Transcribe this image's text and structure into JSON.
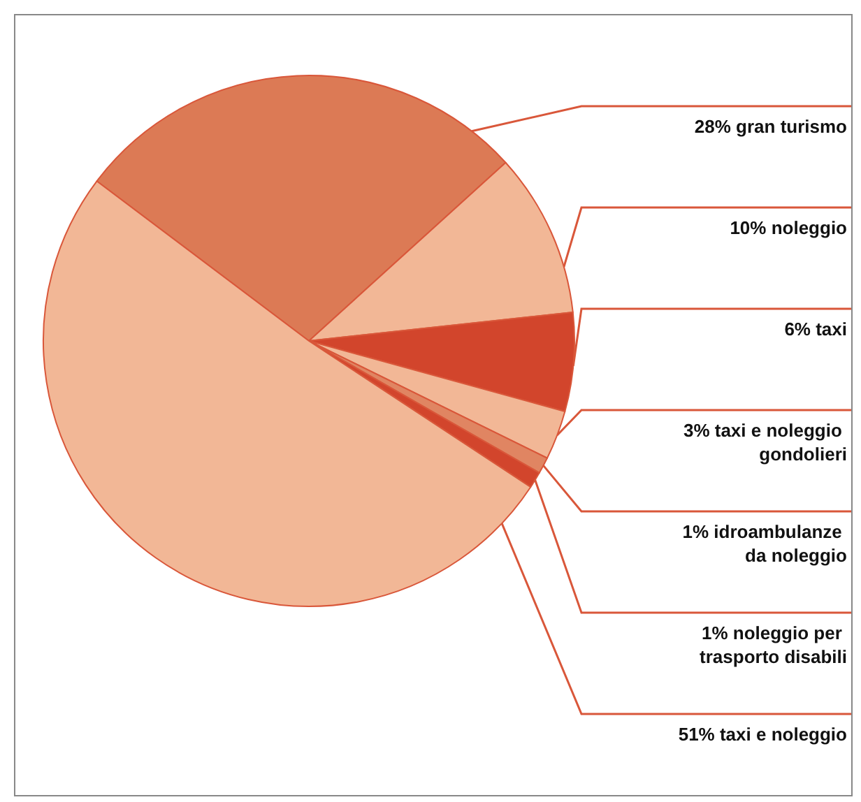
{
  "chart_data": {
    "type": "pie",
    "categories": [
      "gran turismo",
      "noleggio",
      "taxi",
      "taxi e noleggio gondolieri",
      "idroambulanze da noleggio",
      "noleggio per trasporto disabili",
      "taxi e noleggio"
    ],
    "values": [
      28,
      10,
      6,
      3,
      1,
      1,
      51
    ],
    "value_labels": [
      "28%",
      "10%",
      "6%",
      "3%",
      "1%",
      "1%",
      "51%"
    ],
    "colors": [
      "#dc7a55",
      "#f2b796",
      "#d2452c",
      "#f2b796",
      "#e08562",
      "#d2452c",
      "#f2b796"
    ],
    "legend": false
  }
}
